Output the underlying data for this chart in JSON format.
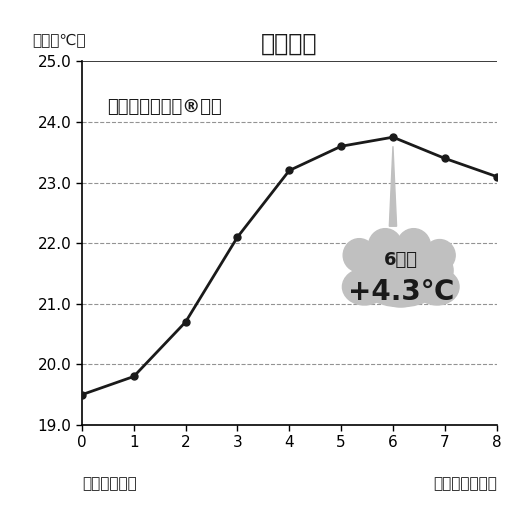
{
  "title": "温度測定",
  "ylabel": "温度（℃）",
  "xlabel_left": "ボーケン調べ",
  "xlabel_right": "経過時間（分）",
  "legend_label": "スマートヒート®毛布",
  "x": [
    0,
    1,
    2,
    3,
    4,
    5,
    6,
    7,
    8
  ],
  "y": [
    19.5,
    19.8,
    20.7,
    22.1,
    23.2,
    23.6,
    23.75,
    23.4,
    23.1
  ],
  "ylim": [
    19.0,
    25.0
  ],
  "xlim": [
    0,
    8
  ],
  "yticks": [
    19.0,
    20.0,
    21.0,
    22.0,
    23.0,
    24.0,
    25.0
  ],
  "ytick_labels": [
    "19.0",
    "20.0",
    "21.0",
    "22.0",
    "23.0",
    "24.0",
    "25.0"
  ],
  "xticks": [
    0,
    1,
    2,
    3,
    4,
    5,
    6,
    7,
    8
  ],
  "annotation_line1": "6分後",
  "annotation_line2": "+4.3℃",
  "line_color": "#1a1a1a",
  "marker_color": "#1a1a1a",
  "bg_color": "#ffffff",
  "cloud_color": "#c0c0c0",
  "grid_color": "#666666",
  "title_fontsize": 17,
  "label_fontsize": 11,
  "tick_fontsize": 11,
  "annotation_fontsize1": 13,
  "annotation_fontsize2": 20,
  "legend_fontsize": 13
}
